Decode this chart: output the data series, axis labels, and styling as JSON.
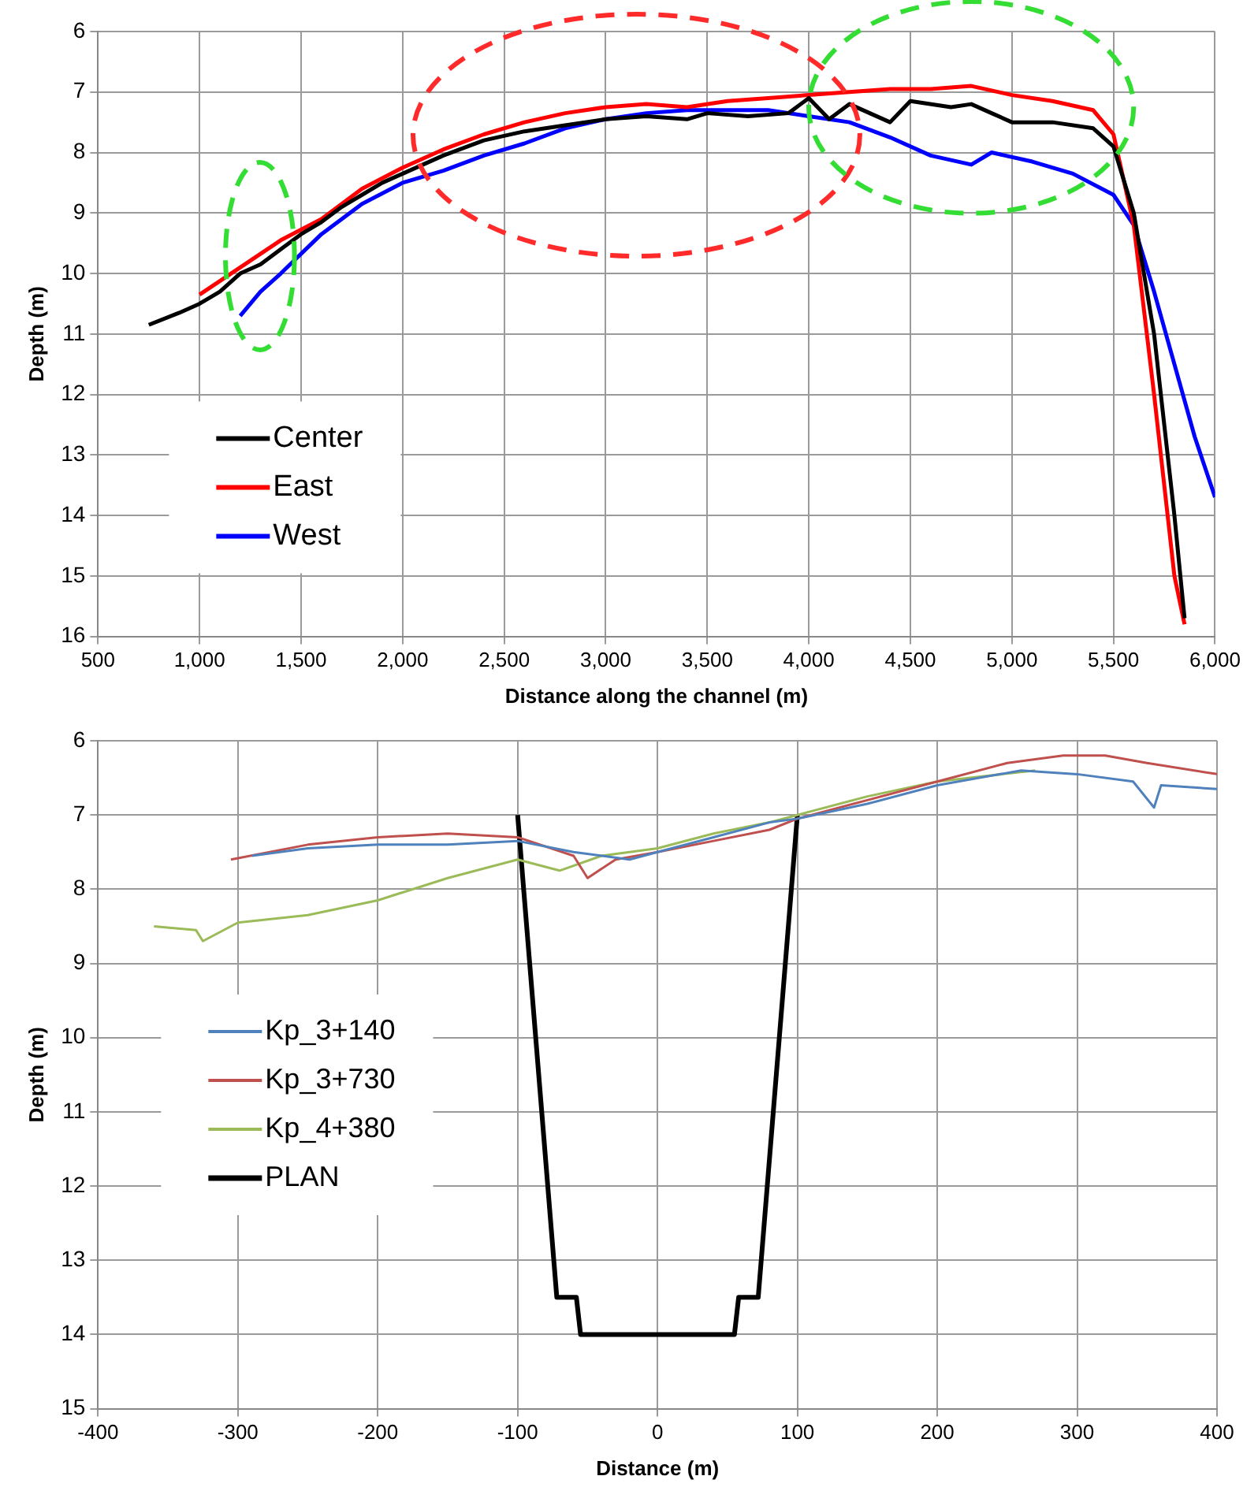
{
  "chart_data": [
    {
      "type": "line",
      "xlabel": "Distance along the channel (m)",
      "ylabel": "Depth (m)",
      "xlim": [
        500,
        6000
      ],
      "xticks": [
        500,
        {
          "value": 1000,
          "label": "1,000"
        },
        {
          "value": 1500,
          "label": "1,500"
        },
        {
          "value": 2000,
          "label": "2,000"
        },
        {
          "value": 2500,
          "label": "2,500"
        },
        {
          "value": 3000,
          "label": "3,000"
        },
        {
          "value": 3500,
          "label": "3,500"
        },
        {
          "value": 4000,
          "label": "4,000"
        },
        {
          "value": 4500,
          "label": "4,500"
        },
        {
          "value": 5000,
          "label": "5,000"
        },
        {
          "value": 5500,
          "label": "5,500"
        },
        {
          "value": 6000,
          "label": "6,000"
        }
      ],
      "ylim": [
        16,
        6
      ],
      "yticks": [
        6,
        7,
        8,
        9,
        10,
        11,
        12,
        13,
        14,
        15,
        16
      ],
      "grid": true,
      "legend": "bottom left",
      "marker": "none",
      "series": [
        {
          "name": "Center",
          "color": "#000000",
          "x": [
            750,
            900,
            1000,
            1100,
            1200,
            1300,
            1400,
            1500,
            1600,
            1700,
            1800,
            1900,
            2000,
            2200,
            2400,
            2600,
            2800,
            3000,
            3200,
            3400,
            3500,
            3700,
            3900,
            4000,
            4100,
            4200,
            4300,
            4400,
            4500,
            4700,
            4800,
            4900,
            5000,
            5200,
            5400,
            5500,
            5600,
            5700,
            5800,
            5850
          ],
          "values": [
            10.85,
            10.65,
            10.5,
            10.3,
            10.0,
            9.85,
            9.6,
            9.35,
            9.15,
            8.9,
            8.7,
            8.5,
            8.35,
            8.05,
            7.8,
            7.65,
            7.55,
            7.45,
            7.4,
            7.45,
            7.35,
            7.4,
            7.35,
            7.1,
            7.45,
            7.2,
            7.35,
            7.5,
            7.15,
            7.25,
            7.2,
            7.35,
            7.5,
            7.5,
            7.6,
            7.9,
            9.0,
            11.0,
            14.0,
            15.7
          ]
        },
        {
          "name": "East",
          "color": "#ff0000",
          "x": [
            1000,
            1200,
            1400,
            1600,
            1800,
            2000,
            2200,
            2400,
            2600,
            2800,
            3000,
            3200,
            3400,
            3600,
            3800,
            4000,
            4200,
            4400,
            4600,
            4800,
            5000,
            5200,
            5400,
            5500,
            5600,
            5700,
            5800,
            5850
          ],
          "values": [
            10.35,
            9.9,
            9.45,
            9.1,
            8.6,
            8.25,
            7.95,
            7.7,
            7.5,
            7.35,
            7.25,
            7.2,
            7.25,
            7.15,
            7.1,
            7.05,
            7.0,
            6.95,
            6.95,
            6.9,
            7.05,
            7.15,
            7.3,
            7.7,
            9.2,
            12.0,
            15.0,
            15.8
          ]
        },
        {
          "name": "West",
          "color": "#0000ff",
          "x": [
            1200,
            1300,
            1400,
            1600,
            1800,
            2000,
            2200,
            2400,
            2600,
            2800,
            3000,
            3200,
            3400,
            3600,
            3800,
            4000,
            4200,
            4400,
            4600,
            4800,
            4900,
            5100,
            5300,
            5500,
            5600,
            5700,
            5800,
            5900,
            6000
          ],
          "values": [
            10.7,
            10.3,
            10.0,
            9.35,
            8.85,
            8.5,
            8.3,
            8.05,
            7.85,
            7.6,
            7.45,
            7.35,
            7.3,
            7.3,
            7.3,
            7.4,
            7.5,
            7.75,
            8.05,
            8.2,
            8.0,
            8.15,
            8.35,
            8.7,
            9.2,
            10.3,
            11.5,
            12.7,
            13.7
          ]
        }
      ]
    },
    {
      "type": "line",
      "xlabel": "Distance (m)",
      "ylabel": "Depth (m)",
      "xlim": [
        -400,
        400
      ],
      "xticks": [
        -400,
        -300,
        -200,
        -100,
        0,
        100,
        200,
        300,
        400
      ],
      "ylim": [
        15,
        6
      ],
      "yticks": [
        6,
        7,
        8,
        9,
        10,
        11,
        12,
        13,
        14,
        15
      ],
      "grid": true,
      "legend": "left",
      "marker": "none",
      "series": [
        {
          "name": "Kp_3+140",
          "color": "#4f81bd",
          "x": [
            -290,
            -250,
            -200,
            -150,
            -100,
            -60,
            -20,
            0,
            40,
            80,
            100,
            150,
            200,
            260,
            300,
            340,
            355,
            360,
            400
          ],
          "values": [
            7.55,
            7.45,
            7.4,
            7.4,
            7.35,
            7.5,
            7.6,
            7.5,
            7.3,
            7.1,
            7.05,
            6.85,
            6.6,
            6.4,
            6.45,
            6.55,
            6.9,
            6.6,
            6.65
          ]
        },
        {
          "name": "Kp_3+730",
          "color": "#c0504d",
          "x": [
            -305,
            -250,
            -200,
            -150,
            -100,
            -60,
            -50,
            -30,
            0,
            40,
            80,
            100,
            150,
            200,
            250,
            270,
            290,
            320,
            350,
            400
          ],
          "values": [
            7.6,
            7.4,
            7.3,
            7.25,
            7.3,
            7.55,
            7.85,
            7.6,
            7.5,
            7.35,
            7.2,
            7.05,
            6.8,
            6.55,
            6.3,
            6.25,
            6.2,
            6.2,
            6.3,
            6.45
          ]
        },
        {
          "name": "Kp_4+380",
          "color": "#9bbb59",
          "x": [
            -360,
            -330,
            -325,
            -300,
            -250,
            -200,
            -150,
            -100,
            -70,
            -40,
            0,
            40,
            80,
            100,
            150,
            200,
            270
          ],
          "values": [
            8.5,
            8.55,
            8.7,
            8.45,
            8.35,
            8.15,
            7.85,
            7.6,
            7.75,
            7.55,
            7.45,
            7.25,
            7.1,
            7.0,
            6.75,
            6.55,
            6.4
          ]
        },
        {
          "name": "PLAN",
          "color": "#000000",
          "x": [
            -100,
            -72,
            -58,
            -55,
            55,
            58,
            72,
            100
          ],
          "values": [
            7,
            13.5,
            13.5,
            14,
            14,
            13.5,
            13.5,
            7
          ]
        }
      ]
    }
  ]
}
